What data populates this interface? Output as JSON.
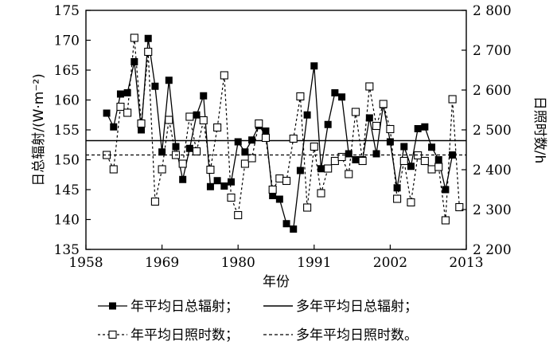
{
  "chart_data": {
    "type": "line",
    "xlabel": "年份",
    "ylabel_left": "日总辐射/(W·m⁻²)",
    "ylabel_right": "日照时数/h",
    "xlim": [
      1958,
      2013
    ],
    "ylim_left": [
      135,
      175
    ],
    "ylim_right": [
      2200,
      2800
    ],
    "xticks": [
      1958,
      1969,
      1980,
      1991,
      2002,
      2013
    ],
    "yticks_left": [
      135,
      140,
      145,
      150,
      155,
      160,
      165,
      170,
      175
    ],
    "yticks_right": [
      2200,
      2300,
      2400,
      2500,
      2600,
      2700,
      2800
    ],
    "ytick_labels_right": [
      "2 200",
      "2 300",
      "2 400",
      "2 500",
      "2 600",
      "2 700",
      "2 800"
    ],
    "series": [
      {
        "name": "年平均日总辐射",
        "axis": "left",
        "x": [
          1961,
          1962,
          1963,
          1964,
          1965,
          1966,
          1967,
          1968,
          1969,
          1970,
          1971,
          1972,
          1973,
          1974,
          1975,
          1976,
          1977,
          1978,
          1979,
          1980,
          1981,
          1982,
          1983,
          1984,
          1985,
          1986,
          1987,
          1988,
          1989,
          1990,
          1991,
          1992,
          1993,
          1994,
          1995,
          1996,
          1997,
          1998,
          1999,
          2000,
          2001,
          2002,
          2003,
          2004,
          2005,
          2006,
          2007,
          2008,
          2009,
          2010,
          2011
        ],
        "values": [
          157.8,
          155.5,
          161.0,
          161.2,
          166.4,
          155.0,
          170.3,
          162.3,
          151.3,
          163.3,
          152.2,
          146.7,
          151.9,
          157.5,
          160.7,
          145.5,
          146.5,
          145.6,
          146.3,
          153.0,
          151.3,
          153.3,
          155.7,
          154.8,
          144.0,
          143.4,
          139.3,
          138.4,
          148.2,
          157.5,
          165.7,
          148.5,
          155.9,
          161.2,
          160.5,
          151.0,
          150.0,
          150.0,
          157.0,
          151.0,
          159.2,
          153.0,
          145.3,
          152.2,
          148.9,
          155.2,
          155.5,
          152.1,
          150.0,
          145.0,
          150.8
        ]
      },
      {
        "name": "多年平均日总辐射",
        "axis": "left",
        "x": [
          1958,
          2013
        ],
        "values": [
          153.2,
          153.2
        ]
      },
      {
        "name": "年平均日照时数",
        "axis": "right",
        "x": [
          1961,
          1962,
          1963,
          1964,
          1965,
          1966,
          1967,
          1968,
          1969,
          1970,
          1971,
          1972,
          1973,
          1974,
          1975,
          1976,
          1977,
          1978,
          1979,
          1980,
          1981,
          1982,
          1983,
          1984,
          1985,
          1986,
          1987,
          1988,
          1989,
          1990,
          1991,
          1992,
          1993,
          1994,
          1995,
          1996,
          1997,
          1998,
          1999,
          2000,
          2001,
          2002,
          2003,
          2004,
          2005,
          2006,
          2007,
          2008,
          2009,
          2010,
          2011,
          2012
        ],
        "values": [
          2437,
          2401,
          2558,
          2543,
          2731,
          2516,
          2696,
          2320,
          2401,
          2525,
          2437,
          2415,
          2533,
          2446,
          2524,
          2400,
          2506,
          2637,
          2330,
          2286,
          2415,
          2429,
          2516,
          2480,
          2350,
          2378,
          2372,
          2478,
          2584,
          2305,
          2458,
          2341,
          2403,
          2422,
          2432,
          2389,
          2545,
          2422,
          2609,
          2510,
          2565,
          2502,
          2327,
          2422,
          2318,
          2436,
          2422,
          2401,
          2407,
          2273,
          2577,
          2306
        ]
      },
      {
        "name": "多年平均日照时数",
        "axis": "right",
        "x": [
          1958,
          2013
        ],
        "values": [
          2437,
          2437
        ]
      }
    ],
    "legend": {
      "position": "bottom",
      "entries": [
        "年平均日总辐射；",
        "多年平均日总辐射；",
        "年平均日照时数；",
        "多年平均日照时数。"
      ]
    }
  }
}
